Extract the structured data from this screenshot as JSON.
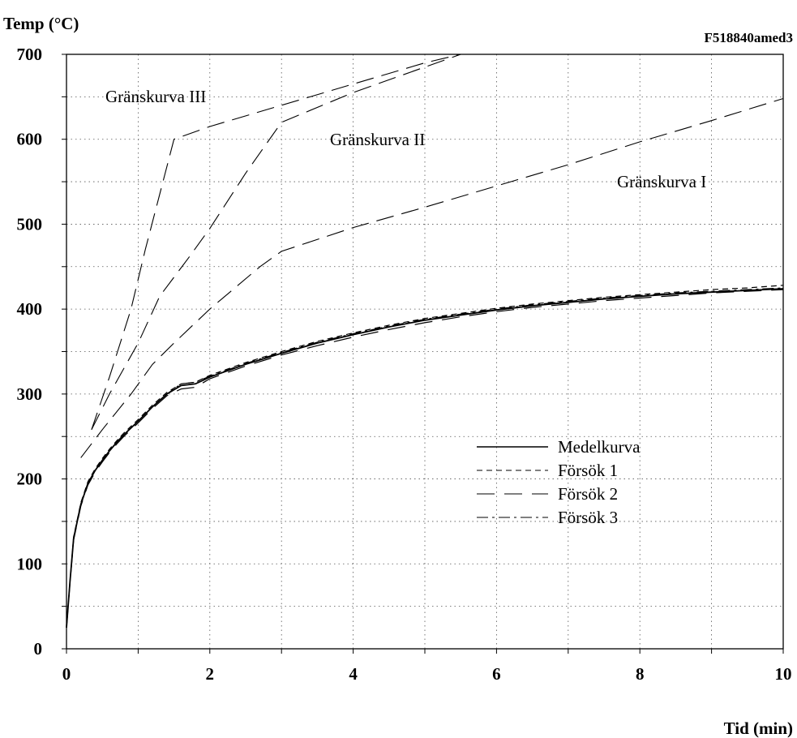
{
  "chart_data": {
    "type": "line",
    "ylabel": "Temp (°C)",
    "xlabel": "Tid (min)",
    "code": "F518840amed3",
    "xlim": [
      0,
      10
    ],
    "ylim": [
      0,
      700
    ],
    "x_ticks": [
      0,
      2,
      4,
      6,
      8,
      10
    ],
    "y_ticks": [
      0,
      100,
      200,
      300,
      400,
      500,
      600,
      700
    ],
    "grid": true,
    "legend_position": "lower-right",
    "series": [
      {
        "name": "Medelkurva",
        "style": "solid",
        "points": [
          [
            0,
            25
          ],
          [
            0.05,
            80
          ],
          [
            0.1,
            130
          ],
          [
            0.2,
            170
          ],
          [
            0.3,
            195
          ],
          [
            0.4,
            210
          ],
          [
            0.5,
            222
          ],
          [
            0.6,
            233
          ],
          [
            0.7,
            243
          ],
          [
            0.8,
            252
          ],
          [
            0.9,
            260
          ],
          [
            1.0,
            268
          ],
          [
            1.2,
            285
          ],
          [
            1.4,
            300
          ],
          [
            1.6,
            310
          ],
          [
            1.8,
            312
          ],
          [
            2,
            320
          ],
          [
            2.5,
            335
          ],
          [
            3,
            348
          ],
          [
            3.5,
            360
          ],
          [
            4,
            370
          ],
          [
            4.5,
            379
          ],
          [
            5,
            387
          ],
          [
            5.5,
            393
          ],
          [
            6,
            399
          ],
          [
            6.5,
            404
          ],
          [
            7,
            408
          ],
          [
            7.5,
            412
          ],
          [
            8,
            415
          ],
          [
            8.5,
            418
          ],
          [
            9,
            420
          ],
          [
            9.5,
            422
          ],
          [
            10,
            424
          ]
        ]
      },
      {
        "name": "Försök 1",
        "style": "dashed",
        "points": [
          [
            0,
            25
          ],
          [
            0.05,
            80
          ],
          [
            0.1,
            132
          ],
          [
            0.2,
            172
          ],
          [
            0.3,
            197
          ],
          [
            0.4,
            212
          ],
          [
            0.5,
            224
          ],
          [
            0.6,
            235
          ],
          [
            0.7,
            245
          ],
          [
            0.8,
            254
          ],
          [
            0.9,
            262
          ],
          [
            1.0,
            270
          ],
          [
            1.2,
            287
          ],
          [
            1.4,
            302
          ],
          [
            1.6,
            312
          ],
          [
            1.8,
            314
          ],
          [
            2,
            322
          ],
          [
            2.5,
            337
          ],
          [
            3,
            350
          ],
          [
            3.5,
            362
          ],
          [
            4,
            372
          ],
          [
            4.5,
            381
          ],
          [
            5,
            389
          ],
          [
            5.5,
            395
          ],
          [
            6,
            401
          ],
          [
            6.5,
            406
          ],
          [
            7,
            410
          ],
          [
            7.5,
            414
          ],
          [
            8,
            417
          ],
          [
            8.5,
            420
          ],
          [
            9,
            423
          ],
          [
            9.5,
            425
          ],
          [
            10,
            428
          ]
        ]
      },
      {
        "name": "Försök 2",
        "style": "long-dash",
        "points": [
          [
            0,
            25
          ],
          [
            0.05,
            78
          ],
          [
            0.1,
            128
          ],
          [
            0.2,
            168
          ],
          [
            0.3,
            193
          ],
          [
            0.4,
            208
          ],
          [
            0.5,
            220
          ],
          [
            0.6,
            231
          ],
          [
            0.7,
            241
          ],
          [
            0.8,
            250
          ],
          [
            0.9,
            258
          ],
          [
            1.0,
            266
          ],
          [
            1.2,
            283
          ],
          [
            1.4,
            298
          ],
          [
            1.6,
            306
          ],
          [
            1.8,
            308
          ],
          [
            2,
            318
          ],
          [
            2.5,
            333
          ],
          [
            3,
            346
          ],
          [
            3.5,
            357
          ],
          [
            4,
            367
          ],
          [
            4.5,
            376
          ],
          [
            5,
            384
          ],
          [
            5.5,
            391
          ],
          [
            6,
            397
          ],
          [
            6.5,
            402
          ],
          [
            7,
            406
          ],
          [
            7.5,
            410
          ],
          [
            8,
            413
          ],
          [
            8.5,
            416
          ],
          [
            9,
            419
          ],
          [
            9.5,
            421
          ],
          [
            10,
            423
          ]
        ]
      },
      {
        "name": "Försök 3",
        "style": "dash-dot",
        "points": [
          [
            0,
            25
          ],
          [
            0.05,
            80
          ],
          [
            0.1,
            130
          ],
          [
            0.2,
            170
          ],
          [
            0.3,
            195
          ],
          [
            0.4,
            210
          ],
          [
            0.5,
            222
          ],
          [
            0.6,
            233
          ],
          [
            0.7,
            243
          ],
          [
            0.8,
            252
          ],
          [
            0.9,
            260
          ],
          [
            1.0,
            268
          ],
          [
            1.2,
            285
          ],
          [
            1.4,
            300
          ],
          [
            1.6,
            312
          ],
          [
            1.8,
            314
          ],
          [
            2,
            321
          ],
          [
            2.5,
            336
          ],
          [
            3,
            349
          ],
          [
            3.5,
            361
          ],
          [
            4,
            371
          ],
          [
            4.5,
            380
          ],
          [
            5,
            388
          ],
          [
            5.5,
            394
          ],
          [
            6,
            400
          ],
          [
            6.5,
            405
          ],
          [
            7,
            409
          ],
          [
            7.5,
            413
          ],
          [
            8,
            416
          ],
          [
            8.5,
            419
          ],
          [
            9,
            421
          ],
          [
            9.5,
            423
          ],
          [
            10,
            425
          ]
        ]
      }
    ],
    "limit_curves": [
      {
        "label": "Gränskurva I",
        "points": [
          [
            0.2,
            225
          ],
          [
            0.5,
            258
          ],
          [
            0.9,
            300
          ],
          [
            1.2,
            335
          ],
          [
            1.5,
            360
          ],
          [
            2,
            400
          ],
          [
            2.7,
            450
          ],
          [
            3,
            468
          ],
          [
            4,
            496
          ],
          [
            5,
            520
          ],
          [
            6,
            545
          ],
          [
            7,
            570
          ],
          [
            8,
            597
          ],
          [
            9,
            622
          ],
          [
            10,
            648
          ]
        ]
      },
      {
        "label": "Gränskurva II",
        "points": [
          [
            0.35,
            258
          ],
          [
            0.6,
            300
          ],
          [
            1.0,
            360
          ],
          [
            1.3,
            415
          ],
          [
            1.7,
            460
          ],
          [
            2,
            495
          ],
          [
            2.5,
            560
          ],
          [
            3,
            620
          ],
          [
            4,
            655
          ],
          [
            5,
            685
          ],
          [
            5.5,
            700
          ]
        ]
      },
      {
        "label": "Gränskurva III",
        "points": [
          [
            0.35,
            258
          ],
          [
            0.6,
            320
          ],
          [
            0.9,
            400
          ],
          [
            1.1,
            470
          ],
          [
            1.3,
            535
          ],
          [
            1.5,
            600
          ],
          [
            2,
            615
          ],
          [
            3,
            640
          ],
          [
            4,
            665
          ],
          [
            5,
            690
          ],
          [
            5.5,
            700
          ]
        ]
      }
    ],
    "annotations": [
      "Gränskurva III",
      "Gränskurva II",
      "Gränskurva I"
    ]
  }
}
